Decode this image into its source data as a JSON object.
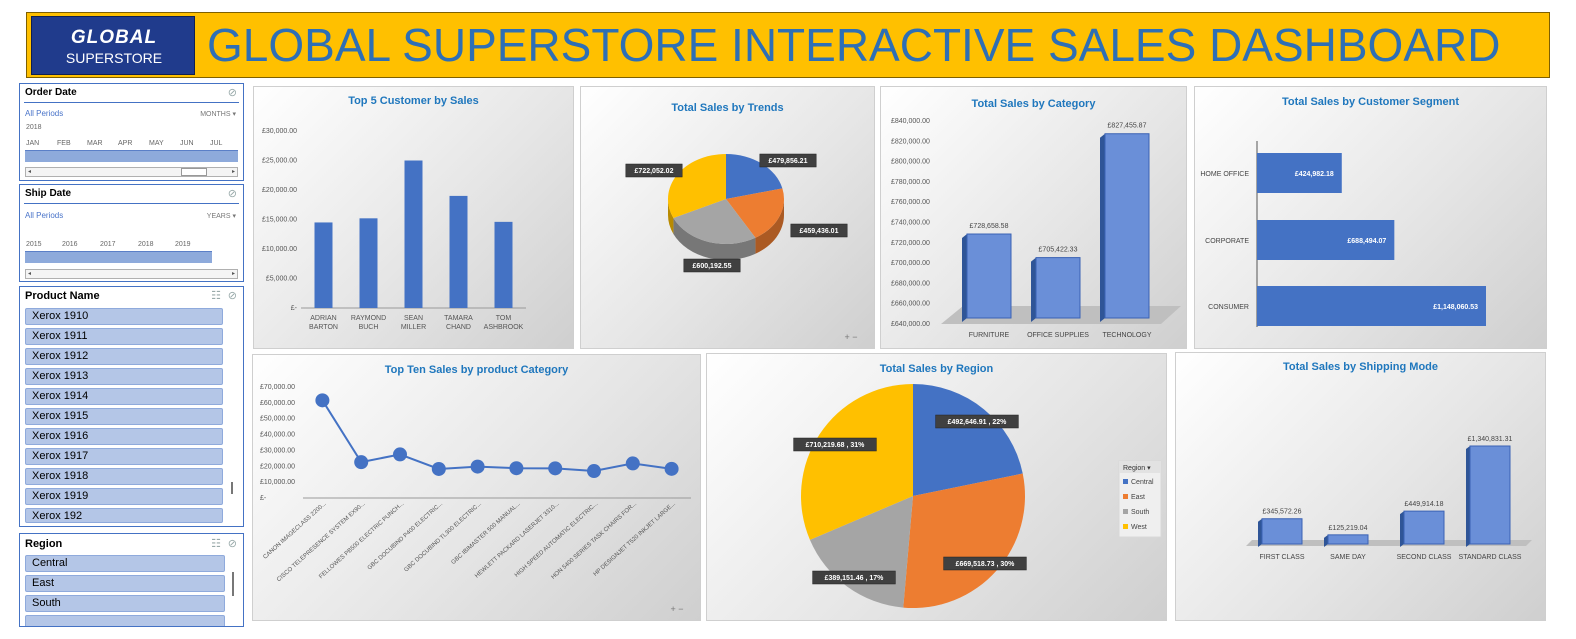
{
  "header": {
    "logo_top": "GLOBAL",
    "logo_bottom": "SUPERSTORE",
    "title": "GLOBAL SUPERSTORE INTERACTIVE SALES DASHBOARD"
  },
  "slicers": {
    "order_date": {
      "title": "Order Date",
      "subtitle": "All Periods",
      "level": "MONTHS",
      "year": "2018",
      "labels": [
        "JAN",
        "FEB",
        "MAR",
        "APR",
        "MAY",
        "JUN",
        "JUL"
      ]
    },
    "ship_date": {
      "title": "Ship Date",
      "subtitle": "All Periods",
      "level": "YEARS",
      "labels": [
        "2015",
        "2016",
        "2017",
        "2018",
        "2019"
      ]
    },
    "product_name": {
      "title": "Product Name",
      "items": [
        "Xerox 1910",
        "Xerox 1911",
        "Xerox 1912",
        "Xerox 1913",
        "Xerox 1914",
        "Xerox 1915",
        "Xerox 1916",
        "Xerox 1917",
        "Xerox 1918",
        "Xerox 1919",
        "Xerox 192"
      ]
    },
    "region": {
      "title": "Region",
      "items": [
        "Central",
        "East",
        "South"
      ]
    }
  },
  "colors": {
    "blue": "#4472c4",
    "orange": "#ed7d31",
    "gray": "#a5a5a5",
    "gold": "#ffc000",
    "title_blue": "#1f77bd"
  },
  "chart_data": [
    {
      "id": "top5",
      "type": "bar",
      "title": "Top 5 Customer by Sales",
      "categories": [
        [
          "ADRIAN",
          "BARTON"
        ],
        [
          "RAYMOND",
          "BUCH"
        ],
        [
          "SEAN",
          "MILLER"
        ],
        [
          "TAMARA",
          "CHAND"
        ],
        [
          "TOM",
          "ASHBROOK"
        ]
      ],
      "values": [
        14500,
        15200,
        25000,
        19000,
        14600
      ],
      "ylim": [
        0,
        30000
      ],
      "yticks": [
        "£-",
        "£5,000.00",
        "£10,000.00",
        "£15,000.00",
        "£20,000.00",
        "£25,000.00",
        "£30,000.00"
      ]
    },
    {
      "id": "trends",
      "type": "pie",
      "title": "Total Sales by Trends",
      "slices": [
        {
          "value": 479856.21,
          "label": "£479,856.21"
        },
        {
          "value": 459436.01,
          "label": "£459,436.01"
        },
        {
          "value": 600192.55,
          "label": "£600,192.55"
        },
        {
          "value": 722052.02,
          "label": "£722,052.02"
        }
      ]
    },
    {
      "id": "category",
      "type": "bar",
      "title": "Total Sales by Category",
      "categories": [
        "FURNITURE",
        "OFFICE SUPPLIES",
        "TECHNOLOGY"
      ],
      "values": [
        728658.58,
        705422.33,
        827455.87
      ],
      "labels": [
        "£728,658.58",
        "£705,422.33",
        "£827,455.87"
      ],
      "ylim": [
        640000,
        840000
      ],
      "yticks": [
        "£640,000.00",
        "£660,000.00",
        "£680,000.00",
        "£700,000.00",
        "£720,000.00",
        "£740,000.00",
        "£760,000.00",
        "£780,000.00",
        "£800,000.00",
        "£820,000.00",
        "£840,000.00"
      ]
    },
    {
      "id": "segment",
      "type": "bar",
      "title": "Total Sales by Customer Segment",
      "categories": [
        "HOME OFFICE",
        "CORPORATE",
        "CONSUMER"
      ],
      "values": [
        424982.18,
        688494.07,
        1148060.53
      ],
      "labels": [
        "£424,982.18",
        "£688,494.07",
        "£1,148,060.53"
      ]
    },
    {
      "id": "top10",
      "type": "line",
      "title": "Top Ten  Sales by product Category",
      "categories": [
        "CANON IMAGECLASS 2200...",
        "CISCO TELEPRESENCE SYSTEM EX90...",
        "FELLOWES PB500 ELECTRIC PUNCH...",
        "GBC DOCUBIND P400 ELECTRIC...",
        "GBC DOCUBIND TL300 ELECTRIC...",
        "GBC IBIMASTER 500 MANUAL...",
        "HEWLETT PACKARD LASERJET 3310...",
        "HIGH SPEED AUTOMATIC ELECTRIC...",
        "HON 5400 SERIES TASK CHAIRS FOR...",
        "HP DESIGNJET T520 INKJET LARGE..."
      ],
      "values": [
        61600,
        22600,
        27500,
        18300,
        19800,
        18800,
        18700,
        17000,
        21800,
        18400
      ],
      "ylim": [
        0,
        70000
      ],
      "yticks": [
        "£-",
        "£10,000.00",
        "£20,000.00",
        "£30,000.00",
        "£40,000.00",
        "£50,000.00",
        "£60,000.00",
        "£70,000.00"
      ]
    },
    {
      "id": "region",
      "type": "pie",
      "title": "Total Sales by Region",
      "legend_title": "Region",
      "slices": [
        {
          "name": "Central",
          "value": 492646.91,
          "label": "£492,646.91 , 22%"
        },
        {
          "name": "East",
          "value": 669518.73,
          "label": "£669,518.73 , 30%"
        },
        {
          "name": "South",
          "value": 389151.46,
          "label": "£389,151.46 , 17%"
        },
        {
          "name": "West",
          "value": 710219.68,
          "label": "£710,219.68 , 31%"
        }
      ]
    },
    {
      "id": "shipping",
      "type": "bar",
      "title": "Total Sales by Shipping Mode",
      "categories": [
        "FIRST CLASS",
        "SAME DAY",
        "SECOND CLASS",
        "STANDARD CLASS"
      ],
      "values": [
        345572.26,
        125219.04,
        449914.18,
        1340831.31
      ],
      "labels": [
        "£345,572.26",
        "£125,219.04",
        "£449,914.18",
        "£1,340,831.31"
      ]
    }
  ]
}
